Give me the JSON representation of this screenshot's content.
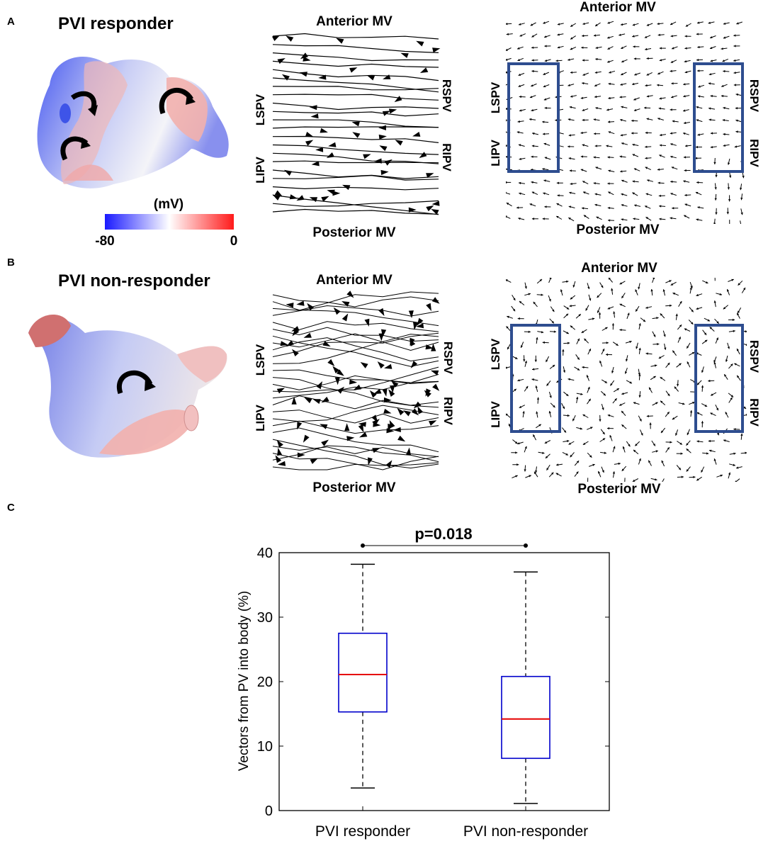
{
  "panels": {
    "A": {
      "letter": "A",
      "title": "PVI responder",
      "colorbar": {
        "unit": "(mV)",
        "min_label": "-80",
        "max_label": "0",
        "colors": [
          "#1a1aff",
          "#ffffff",
          "#ff1a1a"
        ]
      },
      "streamline_map": {
        "top": "Anterior MV",
        "bottom": "Posterior MV",
        "left_top": "LSPV",
        "left_bottom": "LIPV",
        "right_top": "RSPV",
        "right_bottom": "RIPV"
      },
      "vector_map": {
        "top": "Anterior MV",
        "bottom": "Posterior MV",
        "left_top": "LSPV",
        "left_bottom": "LIPV",
        "right_top": "RSPV",
        "right_bottom": "RIPV"
      }
    },
    "B": {
      "letter": "B",
      "title": "PVI non-responder",
      "streamline_map": {
        "top": "Anterior MV",
        "bottom": "Posterior MV",
        "left_top": "LSPV",
        "left_bottom": "LIPV",
        "right_top": "RSPV",
        "right_bottom": "RIPV"
      },
      "vector_map": {
        "top": "Anterior MV",
        "bottom": "Posterior MV",
        "left_top": "LSPV",
        "left_bottom": "LIPV",
        "right_top": "RSPV",
        "right_bottom": "RIPV"
      }
    },
    "C": {
      "letter": "C"
    }
  },
  "colors": {
    "box_edge": "#0000cc",
    "median": "#e60000",
    "pv_region": "#2e4d8f",
    "red_vector": "#e60000"
  },
  "chart_data": {
    "type": "box",
    "ylabel": "Vectors from PV into body (%)",
    "ylim": [
      0,
      40
    ],
    "yticks": [
      0,
      10,
      20,
      30,
      40
    ],
    "categories": [
      "PVI responder",
      "PVI non-responder"
    ],
    "boxes": [
      {
        "name": "PVI responder",
        "whisker_low": 3.5,
        "q1": 15.3,
        "median": 21.1,
        "q3": 27.5,
        "whisker_high": 38.2
      },
      {
        "name": "PVI non-responder",
        "whisker_low": 1.1,
        "q1": 8.1,
        "median": 14.2,
        "q3": 20.8,
        "whisker_high": 37.0
      }
    ],
    "annotation": "p=0.018",
    "grid": false
  }
}
